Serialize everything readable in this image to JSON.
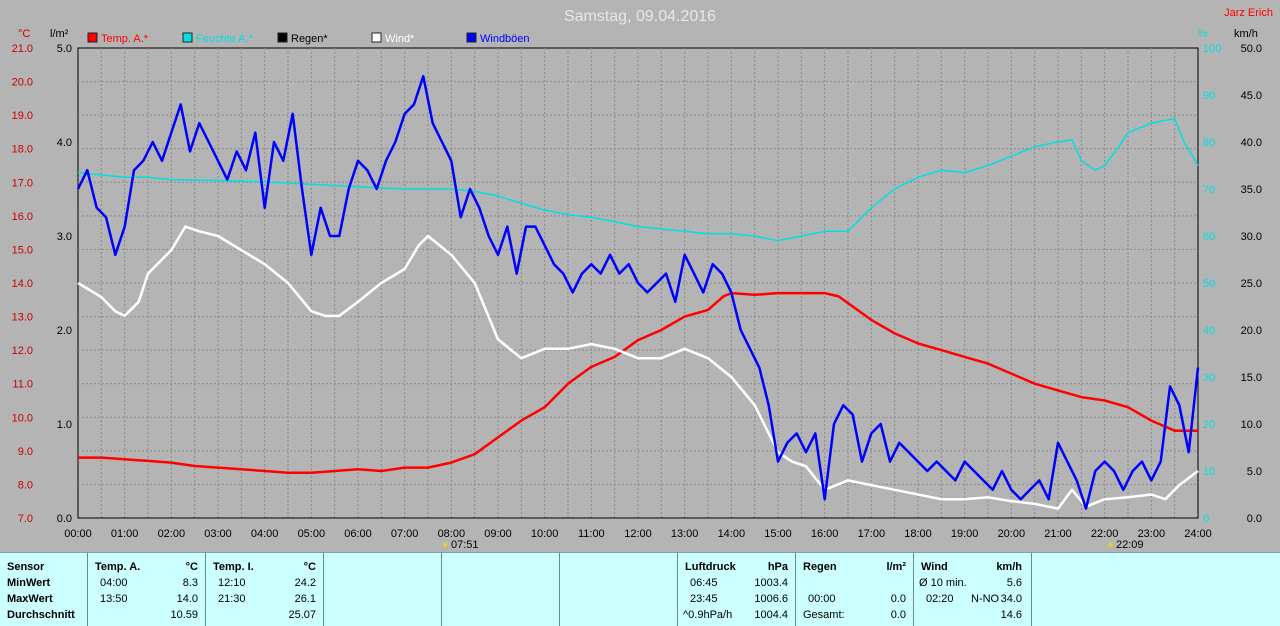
{
  "header": {
    "title": "Samstag, 09.04.2016",
    "author": "Jarz Erich"
  },
  "axes": {
    "left_outer_unit": "°C",
    "left_outer_ticks": [
      "21.0",
      "20.0",
      "19.0",
      "18.0",
      "17.0",
      "16.0",
      "15.0",
      "14.0",
      "13.0",
      "12.0",
      "11.0",
      "10.0",
      "9.0",
      "8.0",
      "7.0"
    ],
    "left_inner_unit": "l/m²",
    "left_inner_ticks": [
      "5.0",
      "4.0",
      "3.0",
      "2.0",
      "1.0",
      "0.0"
    ],
    "right_inner_unit": "%",
    "right_inner_ticks": [
      "100",
      "90",
      "80",
      "70",
      "60",
      "50",
      "40",
      "30",
      "20",
      "10",
      "0"
    ],
    "right_outer_unit": "km/h",
    "right_outer_ticks": [
      "50.0",
      "45.0",
      "40.0",
      "35.0",
      "30.0",
      "25.0",
      "20.0",
      "15.0",
      "10.0",
      "5.0",
      "0.0"
    ],
    "x_ticks": [
      "00:00",
      "01:00",
      "02:00",
      "03:00",
      "04:00",
      "05:00",
      "06:00",
      "07:00",
      "08:00",
      "09:00",
      "10:00",
      "11:00",
      "12:00",
      "13:00",
      "14:00",
      "15:00",
      "16:00",
      "17:00",
      "18:00",
      "19:00",
      "20:00",
      "21:00",
      "22:00",
      "23:00",
      "24:00"
    ],
    "sunrise": "07:51",
    "sunset": "22:09"
  },
  "legend": [
    {
      "label": "Temp. A.*",
      "color": "#ff0000"
    },
    {
      "label": "Feuchte A.*",
      "color": "#00e0e0"
    },
    {
      "label": "Regen*",
      "color": "#000000"
    },
    {
      "label": "Wind*",
      "color": "#ffffff"
    },
    {
      "label": "Windböen",
      "color": "#0000ff"
    }
  ],
  "chart_data": {
    "type": "line",
    "title": "Samstag, 09.04.2016",
    "x_unit": "hour",
    "xlim": [
      0,
      24
    ],
    "series": [
      {
        "name": "Temp. A.*",
        "color": "#ff0000",
        "axis": "°C",
        "ylim": [
          7,
          21
        ],
        "x": [
          0,
          0.5,
          1,
          1.5,
          2,
          2.5,
          3,
          3.5,
          4,
          4.5,
          5,
          5.5,
          6,
          6.5,
          7,
          7.5,
          8,
          8.5,
          9,
          9.5,
          10,
          10.5,
          11,
          11.5,
          12,
          12.5,
          13,
          13.5,
          13.83,
          14,
          14.5,
          15,
          15.5,
          16,
          16.3,
          16.5,
          17,
          17.5,
          18,
          18.5,
          19,
          19.5,
          20,
          20.5,
          21,
          21.5,
          22,
          22.5,
          23,
          23.5,
          24
        ],
        "values": [
          8.8,
          8.8,
          8.75,
          8.7,
          8.65,
          8.55,
          8.5,
          8.45,
          8.4,
          8.35,
          8.35,
          8.4,
          8.45,
          8.4,
          8.5,
          8.5,
          8.65,
          8.9,
          9.4,
          9.9,
          10.3,
          11.0,
          11.5,
          11.8,
          12.3,
          12.6,
          13.0,
          13.2,
          13.6,
          13.7,
          13.65,
          13.7,
          13.7,
          13.7,
          13.6,
          13.4,
          12.9,
          12.5,
          12.2,
          12.0,
          11.8,
          11.6,
          11.3,
          11.0,
          10.8,
          10.6,
          10.5,
          10.3,
          9.9,
          9.6,
          9.6
        ]
      },
      {
        "name": "Feuchte A.*",
        "color": "#00e0e0",
        "axis": "%",
        "ylim": [
          0,
          100
        ],
        "x": [
          0,
          0.5,
          1,
          1.5,
          2,
          3,
          4,
          5,
          6,
          7,
          8,
          8.5,
          9,
          9.5,
          10,
          10.5,
          11,
          11.5,
          12,
          12.5,
          13,
          13.5,
          14,
          14.5,
          15,
          15.5,
          16,
          16.5,
          17,
          17.5,
          18,
          18.5,
          19,
          19.5,
          20,
          20.5,
          21,
          21.3,
          21.5,
          21.8,
          22,
          22.3,
          22.5,
          23,
          23.5,
          23.7,
          24
        ],
        "values": [
          73.5,
          73,
          72.5,
          72.5,
          72,
          71.8,
          71.5,
          71,
          70.5,
          70,
          70,
          69.5,
          68.5,
          67,
          65.5,
          64.5,
          64,
          63,
          62,
          61.5,
          61,
          60.5,
          60.5,
          60,
          59,
          60,
          61,
          61,
          66,
          70,
          72.5,
          74,
          73.5,
          75,
          77,
          79,
          80,
          80.5,
          76,
          74,
          75,
          79,
          82,
          84,
          85,
          80,
          75
        ]
      },
      {
        "name": "Regen*",
        "color": "#000000",
        "axis": "l/m²",
        "ylim": [
          0,
          5
        ],
        "x": [
          0,
          24
        ],
        "values": [
          0,
          0
        ]
      },
      {
        "name": "Wind*",
        "color": "#ffffff",
        "axis": "km/h",
        "ylim": [
          0,
          50
        ],
        "x": [
          0,
          0.5,
          0.8,
          1,
          1.3,
          1.5,
          2,
          2.3,
          2.6,
          3,
          3.5,
          4,
          4.5,
          5,
          5.3,
          5.6,
          6,
          6.5,
          7,
          7.3,
          7.5,
          8,
          8.5,
          9,
          9.5,
          10,
          10.5,
          11,
          11.5,
          12,
          12.5,
          13,
          13.5,
          14,
          14.5,
          15,
          15.3,
          15.6,
          16,
          16.5,
          17,
          17.5,
          18,
          18.5,
          19,
          19.5,
          20,
          20.5,
          21,
          21.3,
          21.6,
          22,
          22.5,
          23,
          23.3,
          23.6,
          24
        ],
        "values": [
          25,
          23.5,
          22,
          21.5,
          23,
          26,
          28.5,
          31,
          30.5,
          30,
          28.5,
          27,
          25,
          22,
          21.5,
          21.5,
          23,
          25,
          26.5,
          29,
          30,
          28,
          25,
          19,
          17,
          18,
          18,
          18.5,
          18,
          17,
          17,
          18,
          17,
          15,
          12,
          7,
          6,
          5.5,
          3,
          4,
          3.5,
          3,
          2.5,
          2,
          2,
          2.2,
          1.8,
          1.5,
          1,
          3,
          1.2,
          2,
          2.2,
          2.5,
          2,
          3.5,
          5
        ]
      },
      {
        "name": "Windböen",
        "color": "#0000ff",
        "axis": "km/h",
        "ylim": [
          0,
          50
        ],
        "x": [
          0,
          0.2,
          0.4,
          0.6,
          0.8,
          1,
          1.2,
          1.4,
          1.6,
          1.8,
          2,
          2.2,
          2.4,
          2.6,
          2.8,
          3,
          3.2,
          3.4,
          3.6,
          3.8,
          4,
          4.2,
          4.4,
          4.6,
          4.8,
          5,
          5.2,
          5.4,
          5.6,
          5.8,
          6,
          6.2,
          6.4,
          6.6,
          6.8,
          7,
          7.2,
          7.4,
          7.6,
          7.8,
          8,
          8.2,
          8.4,
          8.6,
          8.8,
          9,
          9.2,
          9.4,
          9.6,
          9.8,
          10,
          10.2,
          10.4,
          10.6,
          10.8,
          11,
          11.2,
          11.4,
          11.6,
          11.8,
          12,
          12.2,
          12.4,
          12.6,
          12.8,
          13,
          13.2,
          13.4,
          13.6,
          13.8,
          14,
          14.2,
          14.4,
          14.6,
          14.8,
          15,
          15.2,
          15.4,
          15.6,
          15.8,
          16,
          16.2,
          16.4,
          16.6,
          16.8,
          17,
          17.2,
          17.4,
          17.6,
          17.8,
          18,
          18.2,
          18.4,
          18.6,
          18.8,
          19,
          19.2,
          19.4,
          19.6,
          19.8,
          20,
          20.2,
          20.4,
          20.6,
          20.8,
          21,
          21.2,
          21.4,
          21.6,
          21.8,
          22,
          22.2,
          22.4,
          22.6,
          22.8,
          23,
          23.2,
          23.4,
          23.6,
          23.8,
          24
        ],
        "values": [
          35,
          37,
          33,
          32,
          28,
          31,
          37,
          38,
          40,
          38,
          41,
          44,
          39,
          42,
          40,
          38,
          36,
          39,
          37,
          41,
          33,
          40,
          38,
          43,
          35,
          28,
          33,
          30,
          30,
          35,
          38,
          37,
          35,
          38,
          40,
          43,
          44,
          47,
          42,
          40,
          38,
          32,
          35,
          33,
          30,
          28,
          31,
          26,
          31,
          31,
          29,
          27,
          26,
          24,
          26,
          27,
          26,
          28,
          26,
          27,
          25,
          24,
          25,
          26,
          23,
          28,
          26,
          24,
          27,
          26,
          24,
          20,
          18,
          16,
          12,
          6,
          8,
          9,
          7,
          9,
          2,
          10,
          12,
          11,
          6,
          9,
          10,
          6,
          8,
          7,
          6,
          5,
          6,
          5,
          4,
          6,
          5,
          4,
          3,
          5,
          3,
          2,
          3,
          4,
          2,
          8,
          6,
          4,
          1,
          5,
          6,
          5,
          3,
          5,
          6,
          4,
          6,
          14,
          12,
          7,
          16
        ]
      }
    ]
  },
  "table": {
    "sensor": {
      "header": "Sensor",
      "rows": [
        "MinWert",
        "MaxWert",
        "Durchschnitt"
      ]
    },
    "temp_a": {
      "header": "Temp. A.",
      "unit": "°C",
      "min_time": "04:00",
      "min_val": "8.3",
      "max_time": "13:50",
      "max_val": "14.0",
      "avg_val": "10.59"
    },
    "temp_i": {
      "header": "Temp. I.",
      "unit": "°C",
      "min_time": "12:10",
      "min_val": "24.2",
      "max_time": "21:30",
      "max_val": "26.1",
      "avg_val": "25.07"
    },
    "pressure": {
      "header": "Luftdruck",
      "unit": "hPa",
      "min_time": "06:45",
      "min_val": "1003.4",
      "max_time": "23:45",
      "max_val": "1006.6",
      "trend_label": "^0.9hPa/h",
      "trend_val": "1004.4"
    },
    "rain": {
      "header": "Regen",
      "unit": "l/m²",
      "time": "00:00",
      "val": "0.0",
      "total_label": "Gesamt:",
      "total_val": "0.0"
    },
    "wind": {
      "header": "Wind",
      "unit": "km/h",
      "avg_label": "Ø 10 min.",
      "avg_val": "5.6",
      "max_time": "02:20",
      "max_dir": "N-NO",
      "max_val": "34.0",
      "overall_avg": "14.6"
    }
  }
}
